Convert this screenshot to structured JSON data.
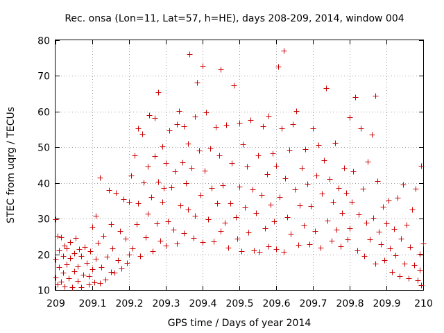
{
  "chart_data": {
    "type": "scatter",
    "title": "Rec. onsa (Lon=11, Lat=57, h=HE), days 208-209, 2014, window 004",
    "xlabel": "GPS time / Days of year 2014",
    "ylabel": "STEC from uqrg / TECUs",
    "xlim": [
      209,
      210
    ],
    "ylim": [
      10,
      80
    ],
    "xticks": [
      "209",
      "209.1",
      "209.2",
      "209.3",
      "209.4",
      "209.5",
      "209.6",
      "209.7",
      "209.8",
      "209.9",
      "210"
    ],
    "yticks": [
      "10",
      "20",
      "30",
      "40",
      "50",
      "60",
      "70",
      "80"
    ],
    "grid": true,
    "marker": "+",
    "color": "#cc0000",
    "series": [
      {
        "name": "STEC",
        "points": [
          [
            209.0,
            29.8
          ],
          [
            209.0,
            18.5
          ],
          [
            209.0,
            13.5
          ],
          [
            209.005,
            25.2
          ],
          [
            209.005,
            11.5
          ],
          [
            209.01,
            21.0
          ],
          [
            209.01,
            16.4
          ],
          [
            209.015,
            24.8
          ],
          [
            209.015,
            12.3
          ],
          [
            209.02,
            19.6
          ],
          [
            209.02,
            14.8
          ],
          [
            209.025,
            22.5
          ],
          [
            209.025,
            11.0
          ],
          [
            209.03,
            17.2
          ],
          [
            209.03,
            21.6
          ],
          [
            209.035,
            13.4
          ],
          [
            209.04,
            23.5
          ],
          [
            209.04,
            18.9
          ],
          [
            209.045,
            10.8
          ],
          [
            209.05,
            15.2
          ],
          [
            209.05,
            20.4
          ],
          [
            209.055,
            24.6
          ],
          [
            209.06,
            12.6
          ],
          [
            209.06,
            16.7
          ],
          [
            209.065,
            21.4
          ],
          [
            209.07,
            10.7
          ],
          [
            209.07,
            19.6
          ],
          [
            209.075,
            14.3
          ],
          [
            209.08,
            22.0
          ],
          [
            209.085,
            17.5
          ],
          [
            209.09,
            11.6
          ],
          [
            209.09,
            13.9
          ],
          [
            209.095,
            20.8
          ],
          [
            209.1,
            15.8
          ],
          [
            209.1,
            27.6
          ],
          [
            209.105,
            12.2
          ],
          [
            209.11,
            30.8
          ],
          [
            209.11,
            18.8
          ],
          [
            209.115,
            23.2
          ],
          [
            209.12,
            12.0
          ],
          [
            209.12,
            41.5
          ],
          [
            209.125,
            16.5
          ],
          [
            209.13,
            25.1
          ],
          [
            209.135,
            13.0
          ],
          [
            209.14,
            19.4
          ],
          [
            209.145,
            38.0
          ],
          [
            209.15,
            28.4
          ],
          [
            209.15,
            15.1
          ],
          [
            209.155,
            21.7
          ],
          [
            209.16,
            14.8
          ],
          [
            209.165,
            37.2
          ],
          [
            209.17,
            18.4
          ],
          [
            209.175,
            26.6
          ],
          [
            209.18,
            16.0
          ],
          [
            209.185,
            35.5
          ],
          [
            209.19,
            24.4
          ],
          [
            209.195,
            17.6
          ],
          [
            209.2,
            34.6
          ],
          [
            209.2,
            20.0
          ],
          [
            209.205,
            42.0
          ],
          [
            209.21,
            21.6
          ],
          [
            209.215,
            47.8
          ],
          [
            209.22,
            28.5
          ],
          [
            209.225,
            55.4
          ],
          [
            209.225,
            34.3
          ],
          [
            209.23,
            19.6
          ],
          [
            209.235,
            53.8
          ],
          [
            209.24,
            40.2
          ],
          [
            209.245,
            24.8
          ],
          [
            209.25,
            44.6
          ],
          [
            209.25,
            31.3
          ],
          [
            209.255,
            59.0
          ],
          [
            209.26,
            36.0
          ],
          [
            209.265,
            20.9
          ],
          [
            209.27,
            58.2
          ],
          [
            209.27,
            47.5
          ],
          [
            209.275,
            28.6
          ],
          [
            209.28,
            65.4
          ],
          [
            209.28,
            40.4
          ],
          [
            209.285,
            23.8
          ],
          [
            209.29,
            50.3
          ],
          [
            209.29,
            34.7
          ],
          [
            209.295,
            38.5
          ],
          [
            209.3,
            45.5
          ],
          [
            209.3,
            22.4
          ],
          [
            209.305,
            29.3
          ],
          [
            209.31,
            54.8
          ],
          [
            209.315,
            38.7
          ],
          [
            209.32,
            27.0
          ],
          [
            209.325,
            43.2
          ],
          [
            209.33,
            56.4
          ],
          [
            209.33,
            23.1
          ],
          [
            209.335,
            60.2
          ],
          [
            209.34,
            33.8
          ],
          [
            209.345,
            45.8
          ],
          [
            209.35,
            55.9
          ],
          [
            209.35,
            26.0
          ],
          [
            209.355,
            40.0
          ],
          [
            209.36,
            51.1
          ],
          [
            209.36,
            32.6
          ],
          [
            209.365,
            76.2
          ],
          [
            209.37,
            44.3
          ],
          [
            209.375,
            24.6
          ],
          [
            209.38,
            58.7
          ],
          [
            209.38,
            30.9
          ],
          [
            209.385,
            68.2
          ],
          [
            209.39,
            49.0
          ],
          [
            209.395,
            36.6
          ],
          [
            209.4,
            72.8
          ],
          [
            209.4,
            23.5
          ],
          [
            209.405,
            43.4
          ],
          [
            209.41,
            59.8
          ],
          [
            209.415,
            29.8
          ],
          [
            209.42,
            49.6
          ],
          [
            209.425,
            38.5
          ],
          [
            209.43,
            23.7
          ],
          [
            209.435,
            55.7
          ],
          [
            209.44,
            34.4
          ],
          [
            209.445,
            47.7
          ],
          [
            209.45,
            71.8
          ],
          [
            209.45,
            26.6
          ],
          [
            209.455,
            39.4
          ],
          [
            209.46,
            28.9
          ],
          [
            209.465,
            56.2
          ],
          [
            209.47,
            21.8
          ],
          [
            209.475,
            34.3
          ],
          [
            209.48,
            45.5
          ],
          [
            209.485,
            67.3
          ],
          [
            209.49,
            30.5
          ],
          [
            209.495,
            24.3
          ],
          [
            209.5,
            56.9
          ],
          [
            209.5,
            39.0
          ],
          [
            209.505,
            20.9
          ],
          [
            209.51,
            50.8
          ],
          [
            209.515,
            33.2
          ],
          [
            209.52,
            44.7
          ],
          [
            209.525,
            26.2
          ],
          [
            209.53,
            57.6
          ],
          [
            209.535,
            38.2
          ],
          [
            209.54,
            21.1
          ],
          [
            209.545,
            31.6
          ],
          [
            209.55,
            47.7
          ],
          [
            209.555,
            20.7
          ],
          [
            209.56,
            36.6
          ],
          [
            209.565,
            55.8
          ],
          [
            209.57,
            27.3
          ],
          [
            209.575,
            42.5
          ],
          [
            209.58,
            58.9
          ],
          [
            209.58,
            22.3
          ],
          [
            209.585,
            33.9
          ],
          [
            209.59,
            48.4
          ],
          [
            209.595,
            29.2
          ],
          [
            209.6,
            44.9
          ],
          [
            209.6,
            21.5
          ],
          [
            209.605,
            72.7
          ],
          [
            209.61,
            36.0
          ],
          [
            209.615,
            55.4
          ],
          [
            209.62,
            77.0
          ],
          [
            209.62,
            20.6
          ],
          [
            209.625,
            41.3
          ],
          [
            209.63,
            30.4
          ],
          [
            209.635,
            49.3
          ],
          [
            209.64,
            25.8
          ],
          [
            209.645,
            56.5
          ],
          [
            209.65,
            38.2
          ],
          [
            209.655,
            60.2
          ],
          [
            209.66,
            22.7
          ],
          [
            209.665,
            33.8
          ],
          [
            209.67,
            44.3
          ],
          [
            209.675,
            28.1
          ],
          [
            209.68,
            49.5
          ],
          [
            209.685,
            39.8
          ],
          [
            209.69,
            22.8
          ],
          [
            209.695,
            33.5
          ],
          [
            209.7,
            55.3
          ],
          [
            209.705,
            26.6
          ],
          [
            209.71,
            42.0
          ],
          [
            209.715,
            50.6
          ],
          [
            209.72,
            21.9
          ],
          [
            209.725,
            37.0
          ],
          [
            209.73,
            46.4
          ],
          [
            209.735,
            66.5
          ],
          [
            209.74,
            29.5
          ],
          [
            209.745,
            41.2
          ],
          [
            209.75,
            23.9
          ],
          [
            209.755,
            34.6
          ],
          [
            209.76,
            51.3
          ],
          [
            209.765,
            27.0
          ],
          [
            209.77,
            38.5
          ],
          [
            209.775,
            22.2
          ],
          [
            209.78,
            31.5
          ],
          [
            209.785,
            44.2
          ],
          [
            209.79,
            37.2
          ],
          [
            209.795,
            24.2
          ],
          [
            209.8,
            58.5
          ],
          [
            209.8,
            27.4
          ],
          [
            209.805,
            34.6
          ],
          [
            209.81,
            43.3
          ],
          [
            209.815,
            64.0
          ],
          [
            209.82,
            21.0
          ],
          [
            209.825,
            31.2
          ],
          [
            209.83,
            55.4
          ],
          [
            209.835,
            38.4
          ],
          [
            209.84,
            19.5
          ],
          [
            209.845,
            28.8
          ],
          [
            209.85,
            46.0
          ],
          [
            209.855,
            24.1
          ],
          [
            209.86,
            53.5
          ],
          [
            209.865,
            30.3
          ],
          [
            209.87,
            64.5
          ],
          [
            209.87,
            17.3
          ],
          [
            209.875,
            40.6
          ],
          [
            209.88,
            26.4
          ],
          [
            209.885,
            22.9
          ],
          [
            209.89,
            33.3
          ],
          [
            209.895,
            18.4
          ],
          [
            209.9,
            28.6
          ],
          [
            209.905,
            35.0
          ],
          [
            209.91,
            21.6
          ],
          [
            209.915,
            15.0
          ],
          [
            209.92,
            27.1
          ],
          [
            209.925,
            19.8
          ],
          [
            209.93,
            35.8
          ],
          [
            209.935,
            13.8
          ],
          [
            209.94,
            24.4
          ],
          [
            209.945,
            39.5
          ],
          [
            209.95,
            17.3
          ],
          [
            209.955,
            28.2
          ],
          [
            209.96,
            13.4
          ],
          [
            209.965,
            22.0
          ],
          [
            209.97,
            32.5
          ],
          [
            209.975,
            17.0
          ],
          [
            209.98,
            38.4
          ],
          [
            209.985,
            12.8
          ],
          [
            209.99,
            20.2
          ],
          [
            209.99,
            15.6
          ],
          [
            209.995,
            44.8
          ],
          [
            209.995,
            11.3
          ],
          [
            210.0,
            23.0
          ]
        ]
      }
    ]
  }
}
